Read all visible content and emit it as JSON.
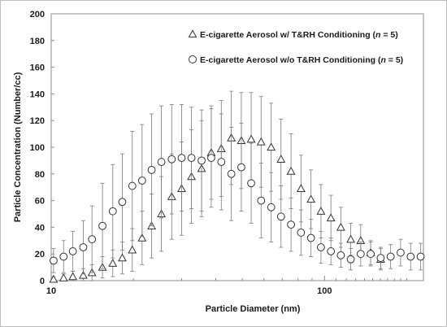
{
  "chart_data": {
    "type": "scatter",
    "xlabel": "Particle Diameter (nm)",
    "ylabel": "Particle Concentration (Number/cc)",
    "xscale": "log",
    "xlim": [
      10,
      230
    ],
    "ylim": [
      0,
      200
    ],
    "x_ticks": [
      {
        "value": 10,
        "label": "10"
      },
      {
        "value": 100,
        "label": "100"
      }
    ],
    "y_ticks": [
      0,
      20,
      40,
      60,
      80,
      100,
      120,
      140,
      160,
      180,
      200
    ],
    "grid": false,
    "legend_position": "top-right",
    "series": [
      {
        "name_prefix": "E-cigarette Aerosol w/ T&RH Conditioning (",
        "name_n": "n",
        "name_suffix": " = 5)",
        "marker": "triangle",
        "points": [
          {
            "x": 10.2,
            "y": 1,
            "err": 2
          },
          {
            "x": 11.1,
            "y": 2,
            "err": 3
          },
          {
            "x": 12.0,
            "y": 3,
            "err": 4
          },
          {
            "x": 13.1,
            "y": 4,
            "err": 5
          },
          {
            "x": 14.1,
            "y": 6,
            "err": 6
          },
          {
            "x": 15.4,
            "y": 10,
            "err": 8
          },
          {
            "x": 16.8,
            "y": 13,
            "err": 10
          },
          {
            "x": 18.2,
            "y": 17,
            "err": 12
          },
          {
            "x": 19.8,
            "y": 23,
            "err": 16
          },
          {
            "x": 21.5,
            "y": 32,
            "err": 20
          },
          {
            "x": 23.3,
            "y": 41,
            "err": 24
          },
          {
            "x": 25.3,
            "y": 50,
            "err": 28
          },
          {
            "x": 27.6,
            "y": 63,
            "err": 32
          },
          {
            "x": 30.0,
            "y": 69,
            "err": 35
          },
          {
            "x": 32.6,
            "y": 78,
            "err": 35
          },
          {
            "x": 35.5,
            "y": 84,
            "err": 36
          },
          {
            "x": 38.5,
            "y": 96,
            "err": 35
          },
          {
            "x": 41.9,
            "y": 99,
            "err": 36
          },
          {
            "x": 45.6,
            "y": 107,
            "err": 35
          },
          {
            "x": 49.6,
            "y": 105,
            "err": 36
          },
          {
            "x": 53.9,
            "y": 106,
            "err": 35
          },
          {
            "x": 58.6,
            "y": 104,
            "err": 34
          },
          {
            "x": 63.8,
            "y": 100,
            "err": 33
          },
          {
            "x": 69.3,
            "y": 91,
            "err": 30
          },
          {
            "x": 75.4,
            "y": 82,
            "err": 28
          },
          {
            "x": 82.0,
            "y": 69,
            "err": 25
          },
          {
            "x": 89.2,
            "y": 61,
            "err": 22
          },
          {
            "x": 97.0,
            "y": 52,
            "err": 20
          },
          {
            "x": 105.5,
            "y": 47,
            "err": 17
          },
          {
            "x": 114.7,
            "y": 40,
            "err": 15
          },
          {
            "x": 124.7,
            "y": 31,
            "err": 12
          },
          {
            "x": 135.6,
            "y": 30,
            "err": 12
          },
          {
            "x": 147.5,
            "y": 21,
            "err": 9
          },
          {
            "x": 160.4,
            "y": 16,
            "err": 8
          }
        ]
      },
      {
        "name_prefix": "E-cigarette Aerosol w/o T&RH Conditioning (",
        "name_n": "n",
        "name_suffix": " = 5)",
        "marker": "circle",
        "points": [
          {
            "x": 10.2,
            "y": 15,
            "err": 9
          },
          {
            "x": 11.1,
            "y": 18,
            "err": 12
          },
          {
            "x": 12.0,
            "y": 22,
            "err": 15
          },
          {
            "x": 13.1,
            "y": 25,
            "err": 20
          },
          {
            "x": 14.1,
            "y": 31,
            "err": 25
          },
          {
            "x": 15.4,
            "y": 41,
            "err": 32
          },
          {
            "x": 16.8,
            "y": 52,
            "err": 35
          },
          {
            "x": 18.2,
            "y": 59,
            "err": 36
          },
          {
            "x": 19.8,
            "y": 71,
            "err": 41
          },
          {
            "x": 21.5,
            "y": 75,
            "err": 42
          },
          {
            "x": 23.3,
            "y": 83,
            "err": 42
          },
          {
            "x": 25.3,
            "y": 89,
            "err": 42
          },
          {
            "x": 27.6,
            "y": 91,
            "err": 41
          },
          {
            "x": 30.0,
            "y": 92,
            "err": 40
          },
          {
            "x": 32.6,
            "y": 92,
            "err": 38
          },
          {
            "x": 35.5,
            "y": 90,
            "err": 38
          },
          {
            "x": 38.5,
            "y": 92,
            "err": 37
          },
          {
            "x": 41.9,
            "y": 89,
            "err": 36
          },
          {
            "x": 45.6,
            "y": 80,
            "err": 35
          },
          {
            "x": 49.6,
            "y": 85,
            "err": 33
          },
          {
            "x": 53.9,
            "y": 73,
            "err": 30
          },
          {
            "x": 58.6,
            "y": 60,
            "err": 28
          },
          {
            "x": 63.8,
            "y": 55,
            "err": 26
          },
          {
            "x": 69.3,
            "y": 48,
            "err": 23
          },
          {
            "x": 75.4,
            "y": 42,
            "err": 20
          },
          {
            "x": 82.0,
            "y": 36,
            "err": 17
          },
          {
            "x": 89.2,
            "y": 32,
            "err": 14
          },
          {
            "x": 97.0,
            "y": 25,
            "err": 12
          },
          {
            "x": 105.5,
            "y": 22,
            "err": 10
          },
          {
            "x": 114.7,
            "y": 19,
            "err": 9
          },
          {
            "x": 124.7,
            "y": 16,
            "err": 8
          },
          {
            "x": 135.6,
            "y": 20,
            "err": 9
          },
          {
            "x": 147.5,
            "y": 20,
            "err": 9
          },
          {
            "x": 160.4,
            "y": 17,
            "err": 8
          },
          {
            "x": 174.5,
            "y": 18,
            "err": 9
          },
          {
            "x": 189.8,
            "y": 21,
            "err": 10
          },
          {
            "x": 206.5,
            "y": 18,
            "err": 10
          },
          {
            "x": 224.6,
            "y": 18,
            "err": 10
          }
        ]
      }
    ]
  }
}
